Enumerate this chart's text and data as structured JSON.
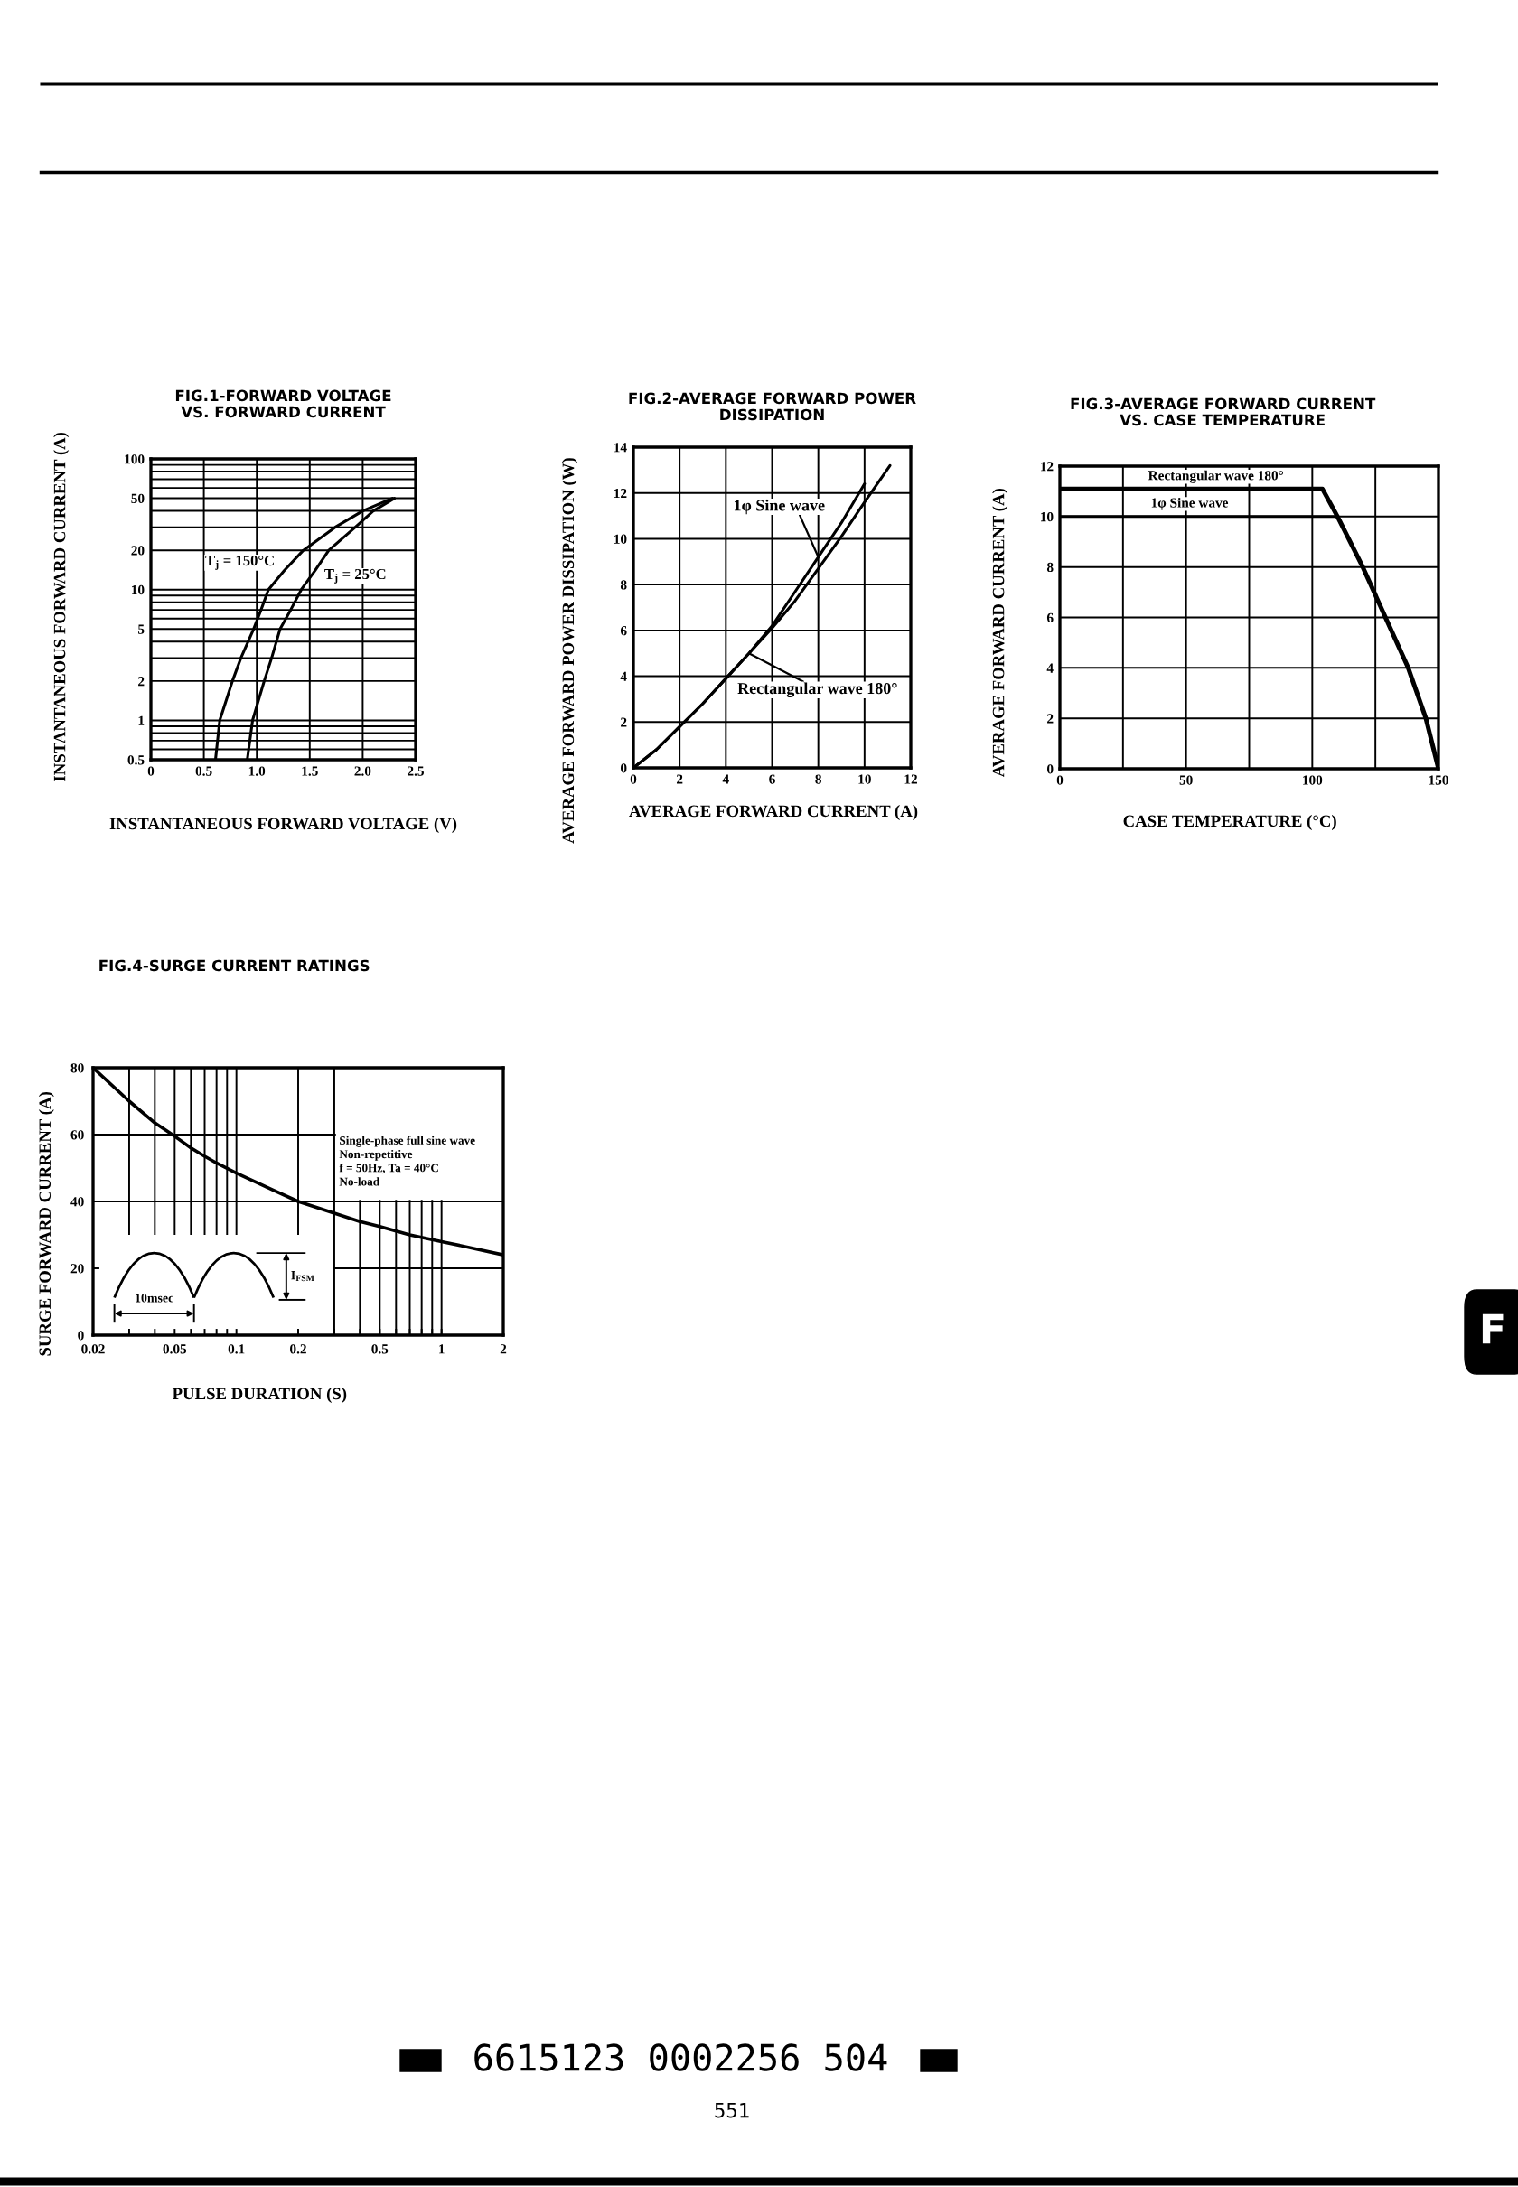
{
  "chart_data": [
    {
      "type": "line",
      "title": "FIG.1-FORWARD VOLTAGE\nVS. FORWARD CURRENT",
      "xlabel": "INSTANTANEOUS FORWARD VOLTAGE (V)",
      "ylabel": "INSTANTANEOUS FORWARD CURRENT (A)",
      "log": "y",
      "grid": true,
      "xlim": [
        0,
        2.5
      ],
      "ylim": [
        0.5,
        100
      ],
      "xticks": [
        0,
        0.5,
        {
          "value": 1,
          "label": "1.0"
        },
        1.5,
        {
          "value": 2,
          "label": "2.0"
        },
        2.5
      ],
      "yticks": [
        0.5,
        {
          "value": 0.6,
          "label": null
        },
        {
          "value": 0.7,
          "label": null
        },
        {
          "value": 0.8,
          "label": null
        },
        {
          "value": 0.9,
          "label": null
        },
        1,
        2,
        {
          "value": 3,
          "label": null
        },
        {
          "value": 4,
          "label": null
        },
        5,
        {
          "value": 6,
          "label": null
        },
        {
          "value": 7,
          "label": null
        },
        {
          "value": 8,
          "label": null
        },
        {
          "value": 9,
          "label": null
        },
        10,
        20,
        {
          "value": 30,
          "label": null
        },
        {
          "value": 40,
          "label": null
        },
        50,
        {
          "value": 60,
          "label": null
        },
        {
          "value": 70,
          "label": null
        },
        {
          "value": 80,
          "label": null
        },
        {
          "value": 90,
          "label": null
        },
        100
      ],
      "series": [
        {
          "name": "T$_{j}$ = 150°C",
          "color": "#000000",
          "x": [
            0.61,
            0.65,
            0.77,
            0.85,
            0.97,
            1.04,
            1.11,
            1.26,
            1.44,
            1.74,
            2.0,
            2.28
          ],
          "values": [
            0.5,
            1,
            2,
            3,
            5,
            7,
            10,
            14,
            20,
            30,
            40,
            50
          ]
        },
        {
          "name": "T$_{j}$ = 25°C",
          "color": "#000000",
          "x": [
            0.91,
            0.96,
            1.07,
            1.14,
            1.22,
            1.32,
            1.42,
            1.55,
            1.68,
            1.93,
            2.1,
            2.3
          ],
          "values": [
            0.5,
            1,
            2,
            3,
            5,
            7,
            10,
            14,
            20,
            30,
            40,
            50
          ]
        }
      ]
    },
    {
      "type": "line",
      "title": "FIG.2-AVERAGE FORWARD POWER\nDISSIPATION",
      "xlabel": "AVERAGE FORWARD CURRENT (A)",
      "ylabel": "AVERAGE FORWARD POWER DISSIPATION (W)",
      "grid": true,
      "xlim": [
        0,
        12
      ],
      "ylim": [
        0,
        14
      ],
      "xticks": [
        0,
        2,
        4,
        6,
        8,
        10,
        12
      ],
      "yticks": [
        0,
        2,
        4,
        6,
        8,
        10,
        12,
        14
      ],
      "series": [
        {
          "name": "1φ Sine wave",
          "color": "#000000",
          "x": [
            0,
            1,
            2,
            3,
            4,
            5,
            6,
            7,
            8,
            9,
            10
          ],
          "values": [
            0,
            0.8,
            1.8,
            2.8,
            3.9,
            5.0,
            6.2,
            7.7,
            9.2,
            10.7,
            12.4
          ]
        },
        {
          "name": "Rectangular wave 180°",
          "color": "#000000",
          "x": [
            0,
            1,
            2,
            3,
            4,
            5,
            6,
            7,
            8,
            9,
            10,
            11.1
          ],
          "values": [
            0,
            0.8,
            1.8,
            2.8,
            3.9,
            5.0,
            6.1,
            7.3,
            8.7,
            10.1,
            11.6,
            13.2
          ]
        }
      ]
    },
    {
      "type": "line",
      "title": "FIG.3-AVERAGE FORWARD CURRENT\nVS. CASE TEMPERATURE",
      "xlabel": "CASE TEMPERATURE (°C)",
      "ylabel": "AVERAGE FORWARD CURRENT (A)",
      "grid": true,
      "xlim": [
        0,
        150
      ],
      "ylim": [
        0,
        12
      ],
      "xticks": [
        0,
        {
          "value": 25,
          "label": null
        },
        50,
        {
          "value": 75,
          "label": null
        },
        100,
        {
          "value": 125,
          "label": null
        },
        150
      ],
      "yticks": [
        0,
        2,
        4,
        6,
        8,
        10,
        12
      ],
      "series": [
        {
          "name": "Rectangular wave 180°",
          "color": "#000000",
          "x": [
            0,
            104,
            110,
            120,
            129,
            138,
            145,
            150
          ],
          "values": [
            11.1,
            11.1,
            10,
            8,
            6,
            4,
            2,
            0
          ]
        },
        {
          "name": "1φ Sine wave",
          "color": "#000000",
          "x": [
            0,
            110,
            120,
            129,
            138,
            145,
            150
          ],
          "values": [
            10,
            10,
            8,
            6,
            4,
            2,
            0
          ]
        }
      ]
    },
    {
      "type": "line",
      "title": "FIG.4-SURGE CURRENT RATINGS",
      "xlabel": "PULSE DURATION (S)",
      "ylabel": "SURGE FORWARD CURRENT (A)",
      "log": "x",
      "grid": true,
      "xlim": [
        0.02,
        2
      ],
      "ylim": [
        0,
        80
      ],
      "xticks": [
        0.02,
        {
          "value": 0.03,
          "label": null
        },
        {
          "value": 0.04,
          "label": null
        },
        0.05,
        {
          "value": 0.06,
          "label": null
        },
        {
          "value": 0.07,
          "label": null
        },
        {
          "value": 0.08,
          "label": null
        },
        {
          "value": 0.09,
          "label": null
        },
        0.1,
        0.2,
        {
          "value": 0.3,
          "label": null
        },
        {
          "value": 0.4,
          "label": null
        },
        0.5,
        {
          "value": 0.6,
          "label": null
        },
        {
          "value": 0.7,
          "label": null
        },
        {
          "value": 0.8,
          "label": null
        },
        {
          "value": 0.9,
          "label": null
        },
        1,
        2
      ],
      "yticks": [
        0,
        20,
        40,
        60,
        80
      ],
      "color": "#000000",
      "x": [
        0.02,
        0.03,
        0.04,
        0.05,
        0.06,
        0.07,
        0.08,
        0.1,
        0.15,
        0.2,
        0.3,
        0.4,
        0.5,
        0.7,
        1,
        1.5,
        2
      ],
      "values": [
        80,
        70,
        63.5,
        59.5,
        56,
        53.5,
        51.5,
        48.5,
        43.5,
        40,
        36.5,
        34,
        32.5,
        30,
        28,
        25.7,
        24
      ],
      "annotations": [
        "Single-phase full sine wave\nNon-repetitive\nf = 50Hz, Ta = 40°C\nNo-load",
        "10msec",
        "I$_{FSM}$"
      ]
    },
    {
      "type": "other",
      "annotations": [
        "6615123 0002256 504",
        "551",
        "F"
      ]
    }
  ]
}
